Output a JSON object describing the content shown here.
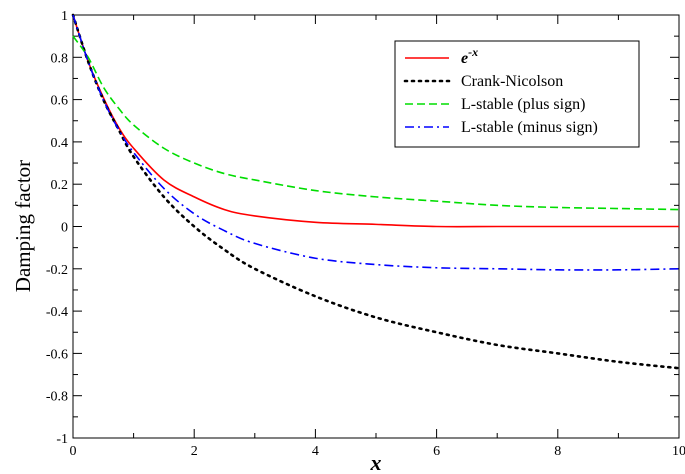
{
  "chart_data": {
    "type": "line",
    "title": "",
    "xlabel": "x",
    "ylabel": "Damping factor",
    "xlim": [
      0,
      10
    ],
    "ylim": [
      -1,
      1
    ],
    "x_ticks": [
      0,
      2,
      4,
      6,
      8,
      10
    ],
    "y_ticks": [
      -1,
      -0.8,
      -0.6,
      -0.4,
      -0.2,
      0,
      0.2,
      0.4,
      0.6,
      0.8,
      1
    ],
    "x_tick_labels": [
      "0",
      "2",
      "4",
      "6",
      "8",
      "10"
    ],
    "y_tick_labels": [
      "-1",
      "-0.8",
      "-0.6",
      "-0.4",
      "-0.2",
      "0",
      "0.2",
      "0.4",
      "0.6",
      "0.8",
      "1"
    ],
    "grid": false,
    "legend_position": "top-right",
    "x": [
      0,
      0.25,
      0.5,
      0.75,
      1,
      1.5,
      2,
      2.5,
      3,
      4,
      5,
      6,
      7,
      8,
      9,
      10
    ],
    "series": [
      {
        "name": "e",
        "name_superscript": "-x",
        "color": "#ff0000",
        "dash": "solid",
        "values": [
          1.0,
          0.78,
          0.61,
          0.47,
          0.37,
          0.22,
          0.14,
          0.08,
          0.05,
          0.02,
          0.01,
          0.0,
          0.0,
          0.0,
          0.0,
          0.0
        ]
      },
      {
        "name": "Crank-Nicolson",
        "color": "#000000",
        "dash": "dotted",
        "values": [
          1.0,
          0.78,
          0.6,
          0.46,
          0.33,
          0.14,
          0.0,
          -0.11,
          -0.2,
          -0.33,
          -0.43,
          -0.5,
          -0.56,
          -0.6,
          -0.64,
          -0.67
        ]
      },
      {
        "name": "L-stable (plus sign)",
        "color": "#00dd00",
        "dash": "dashed",
        "values": [
          0.9,
          0.8,
          0.66,
          0.56,
          0.48,
          0.37,
          0.3,
          0.25,
          0.22,
          0.17,
          0.14,
          0.12,
          0.1,
          0.09,
          0.085,
          0.08
        ]
      },
      {
        "name": "L-stable (minus sign)",
        "color": "#0000ff",
        "dash": "dashdot",
        "values": [
          1.0,
          0.78,
          0.6,
          0.46,
          0.35,
          0.18,
          0.06,
          -0.02,
          -0.08,
          -0.15,
          -0.18,
          -0.195,
          -0.2,
          -0.205,
          -0.205,
          -0.2
        ]
      }
    ]
  }
}
